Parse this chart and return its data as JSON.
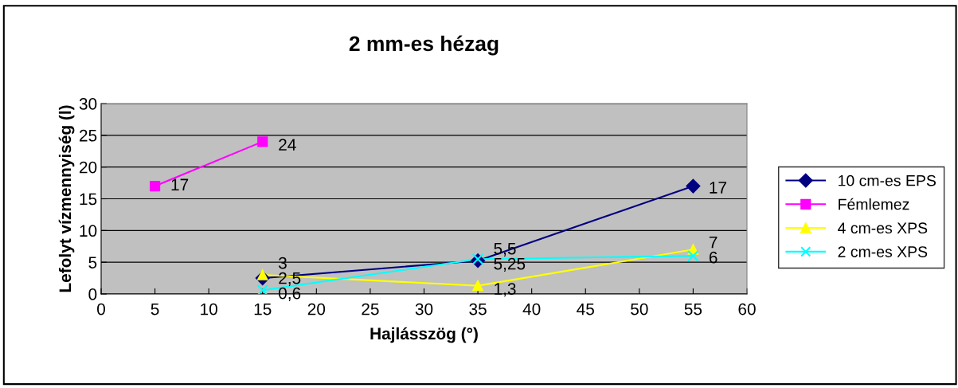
{
  "chart_data": {
    "type": "line",
    "title": "2 mm-es hézag",
    "xlabel": "Hajlásszög (°)",
    "ylabel": "Lefolyt vízmennyiség (l)",
    "xlim": [
      0,
      60
    ],
    "xticks": [
      0,
      5,
      10,
      15,
      20,
      25,
      30,
      35,
      40,
      45,
      50,
      55,
      60
    ],
    "ylim": [
      0,
      30
    ],
    "yticks": [
      0,
      5,
      10,
      15,
      20,
      25,
      30
    ],
    "grid": "y",
    "legend": "right",
    "series": [
      {
        "name": "10 cm-es EPS",
        "color": "#000080",
        "marker": "diamond",
        "x": [
          15,
          35,
          55
        ],
        "values": [
          2.5,
          5.25,
          17
        ],
        "value_labels": [
          "2,5",
          "5,25",
          "17"
        ]
      },
      {
        "name": "Fémlemez",
        "color": "#ff00ff",
        "marker": "square",
        "x": [
          5,
          15
        ],
        "values": [
          17,
          24
        ],
        "value_labels": [
          "17",
          "24"
        ]
      },
      {
        "name": "4 cm-es XPS",
        "color": "#ffff00",
        "marker": "triangle",
        "x": [
          15,
          35,
          55
        ],
        "values": [
          3,
          1.3,
          7
        ],
        "value_labels": [
          "3",
          "1,3",
          "7"
        ]
      },
      {
        "name": "2 cm-es XPS",
        "color": "#00ffff",
        "marker": "cross",
        "x": [
          15,
          35,
          55
        ],
        "values": [
          0.6,
          5.5,
          6
        ],
        "value_labels": [
          "0,6",
          "5,5",
          "6"
        ]
      }
    ]
  }
}
